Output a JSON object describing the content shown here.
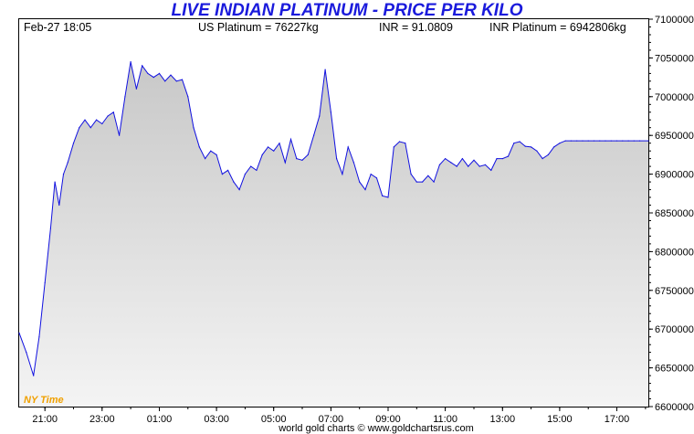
{
  "header": {
    "title": "LIVE INDIAN PLATINUM - PRICE PER KILO",
    "date_time": "Feb-27  18:05",
    "us_price": "US Platinum = 76227kg",
    "fx_rate": "INR = 91.0809",
    "inr_price": "INR Platinum = 6942806kg"
  },
  "timezone_label": "NY Time",
  "footer": "world gold charts © www.goldchartsrus.com",
  "colors": {
    "line": "#1010e0",
    "title": "#1a1adc",
    "area_top": "#c8c8c8",
    "area_bottom": "#f4f4f4",
    "timezone": "#f0a000"
  },
  "chart_data": {
    "type": "area",
    "title": "LIVE INDIAN PLATINUM - PRICE PER KILO",
    "xlabel": "",
    "ylabel": "",
    "x_ticks": [
      "21:00",
      "23:00",
      "01:00",
      "03:00",
      "05:00",
      "07:00",
      "09:00",
      "11:00",
      "13:00",
      "15:00",
      "17:00"
    ],
    "y_ticks": [
      "6600000",
      "6650000",
      "6700000",
      "6750000",
      "6800000",
      "6850000",
      "6900000",
      "6950000",
      "7000000",
      "7050000",
      "7100000"
    ],
    "ylim": [
      6600000,
      7100000
    ],
    "xlim": [
      20.1,
      42.1
    ],
    "grid": false,
    "x_unit": "hours (NY Time); values above 24 are the next day, 25 = 01:00",
    "series": [
      {
        "x": [
          20.1,
          20.35,
          20.6,
          20.8,
          21.0,
          21.2,
          21.35,
          21.5,
          21.65,
          21.8,
          22.0,
          22.2,
          22.4,
          22.6,
          22.8,
          23.0,
          23.2,
          23.4,
          23.6,
          23.8,
          24.0,
          24.2,
          24.4,
          24.6,
          24.8,
          25.0,
          25.2,
          25.4,
          25.6,
          25.8,
          26.0,
          26.2,
          26.4,
          26.6,
          26.8,
          27.0,
          27.2,
          27.4,
          27.6,
          27.8,
          28.0,
          28.2,
          28.4,
          28.6,
          28.8,
          29.0,
          29.2,
          29.4,
          29.6,
          29.8,
          30.0,
          30.2,
          30.4,
          30.6,
          30.8,
          31.0,
          31.2,
          31.4,
          31.6,
          31.8,
          32.0,
          32.2,
          32.4,
          32.6,
          32.8,
          33.0,
          33.2,
          33.4,
          33.6,
          33.8,
          34.0,
          34.2,
          34.4,
          34.6,
          34.8,
          35.0,
          35.2,
          35.4,
          35.6,
          35.8,
          36.0,
          36.2,
          36.4,
          36.6,
          36.8,
          37.0,
          37.2,
          37.4,
          37.6,
          37.8,
          38.0,
          38.2,
          38.4,
          38.6,
          38.8,
          39.0,
          39.2,
          39.4,
          39.6,
          39.8,
          40.0,
          40.2,
          40.4,
          40.6,
          40.8,
          41.0,
          41.2,
          41.4,
          41.6,
          41.8,
          42.1
        ],
        "y": [
          6695000,
          6670000,
          6640000,
          6690000,
          6760000,
          6830000,
          6890000,
          6860000,
          6900000,
          6915000,
          6940000,
          6960000,
          6970000,
          6960000,
          6970000,
          6965000,
          6975000,
          6980000,
          6950000,
          7000000,
          7045000,
          7010000,
          7040000,
          7030000,
          7025000,
          7030000,
          7020000,
          7028000,
          7020000,
          7022000,
          7000000,
          6960000,
          6935000,
          6920000,
          6930000,
          6925000,
          6900000,
          6905000,
          6890000,
          6880000,
          6900000,
          6910000,
          6905000,
          6925000,
          6935000,
          6930000,
          6940000,
          6915000,
          6945000,
          6920000,
          6918000,
          6925000,
          6950000,
          6975000,
          7035000,
          6980000,
          6920000,
          6900000,
          6935000,
          6915000,
          6890000,
          6880000,
          6900000,
          6895000,
          6872000,
          6870000,
          6935000,
          6942000,
          6940000,
          6900000,
          6890000,
          6890000,
          6898000,
          6890000,
          6912000,
          6920000,
          6915000,
          6910000,
          6920000,
          6910000,
          6918000,
          6910000,
          6912000,
          6905000,
          6920000,
          6920000,
          6923000,
          6940000,
          6942000,
          6936000,
          6935000,
          6930000,
          6920000,
          6925000,
          6935000,
          6940000,
          6943000,
          6943000,
          6943000,
          6943000,
          6943000,
          6943000,
          6943000,
          6943000,
          6943000,
          6943000,
          6943000,
          6943000,
          6943000,
          6943000,
          6943000
        ]
      }
    ]
  }
}
